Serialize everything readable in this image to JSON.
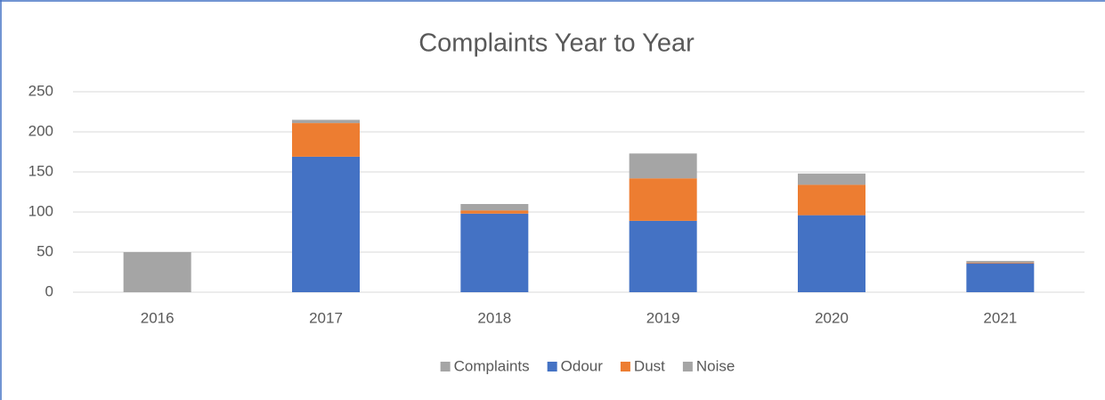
{
  "chart_data": {
    "type": "stacked_bar",
    "title": "Complaints Year to Year",
    "categories": [
      "2016",
      "2017",
      "2018",
      "2019",
      "2020",
      "2021"
    ],
    "series": [
      {
        "name": "Complaints",
        "color": "#a5a5a5",
        "values": [
          50,
          null,
          null,
          null,
          null,
          null
        ]
      },
      {
        "name": "Odour",
        "color": "#4472c4",
        "values": [
          null,
          169,
          98,
          89,
          96,
          36
        ]
      },
      {
        "name": "Dust",
        "color": "#ed7d31",
        "values": [
          null,
          42,
          4,
          53,
          38,
          1
        ]
      },
      {
        "name": "Noise",
        "color": "#a5a5a5",
        "values": [
          null,
          4,
          8,
          31,
          14,
          2
        ]
      }
    ],
    "ylim": [
      0,
      250
    ],
    "yticks": [
      0,
      50,
      100,
      150,
      200,
      250
    ],
    "grid": true,
    "legend": "bottom"
  }
}
